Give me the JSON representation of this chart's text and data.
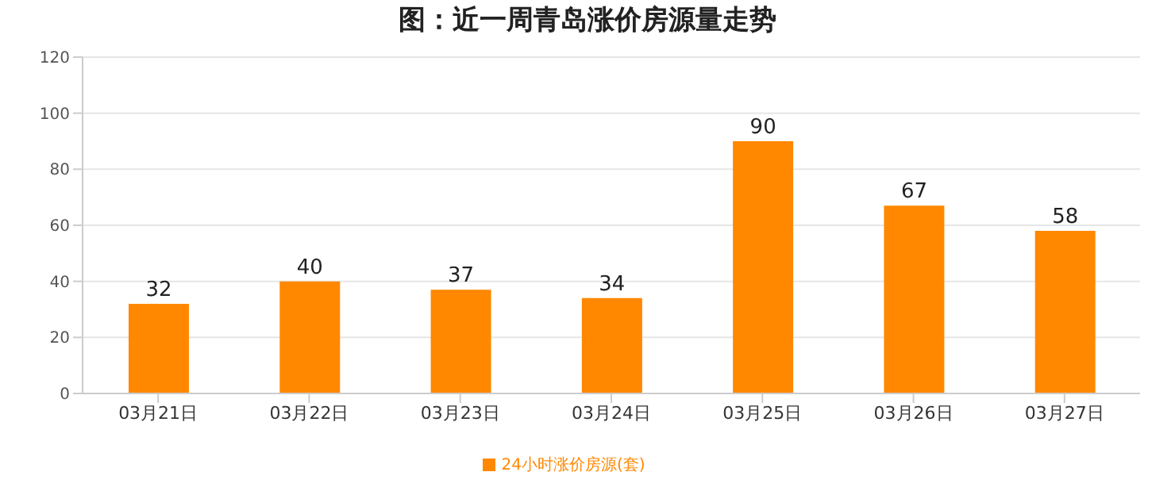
{
  "chart_data": {
    "type": "bar",
    "title": "图：近一周青岛涨价房源量走势",
    "categories": [
      "03月21日",
      "03月22日",
      "03月23日",
      "03月24日",
      "03月25日",
      "03月26日",
      "03月27日"
    ],
    "series": [
      {
        "name": "24小时涨价房源(套)",
        "color": "#ff8800",
        "values": [
          32,
          40,
          37,
          34,
          90,
          67,
          58
        ]
      }
    ],
    "ylim": [
      0,
      120
    ],
    "yticks": [
      0,
      20,
      40,
      60,
      80,
      100,
      120
    ],
    "grid": "y",
    "legend": "bottom",
    "data_labels": true
  }
}
